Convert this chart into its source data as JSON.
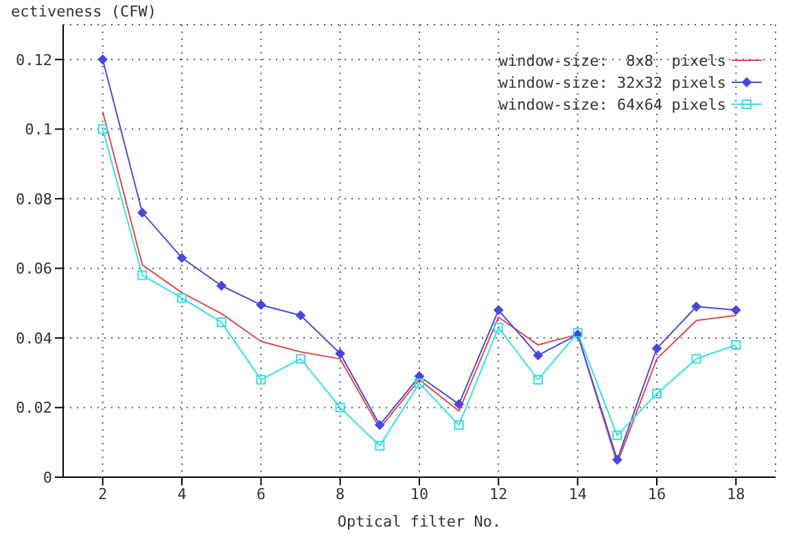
{
  "chart_data": {
    "type": "line",
    "xlabel": "Optical filter No.",
    "ylabel": "ectiveness (CFW)",
    "x": [
      2,
      3,
      4,
      5,
      6,
      7,
      8,
      9,
      10,
      11,
      12,
      13,
      14,
      15,
      16,
      17,
      18
    ],
    "series": [
      {
        "name": "window-size:  8x8  pixels",
        "color": "#e04848",
        "marker": "none",
        "values": [
          0.105,
          0.061,
          0.053,
          0.047,
          0.039,
          0.036,
          0.034,
          0.014,
          0.028,
          0.019,
          0.046,
          0.038,
          0.041,
          0.004,
          0.034,
          0.045,
          0.0465
        ]
      },
      {
        "name": "window-size: 32x32 pixels",
        "color": "#4848e0",
        "marker": "diamond",
        "values": [
          0.12,
          0.076,
          0.063,
          0.055,
          0.0495,
          0.0465,
          0.0355,
          0.015,
          0.029,
          0.021,
          0.048,
          0.035,
          0.041,
          0.005,
          0.037,
          0.049,
          0.048
        ]
      },
      {
        "name": "window-size: 64x64 pixels",
        "color": "#30e0e0",
        "marker": "square",
        "values": [
          0.1,
          0.058,
          0.0515,
          0.0445,
          0.028,
          0.034,
          0.02,
          0.009,
          0.027,
          0.015,
          0.043,
          0.028,
          0.0415,
          0.012,
          0.024,
          0.034,
          0.038
        ]
      }
    ],
    "xlim": [
      1,
      19
    ],
    "xticks": [
      2,
      4,
      6,
      8,
      10,
      12,
      14,
      16,
      18
    ],
    "ylim": [
      0,
      0.13
    ],
    "yticks": [
      0,
      0.02,
      0.04,
      0.06,
      0.08,
      0.1,
      0.12
    ],
    "grid": true,
    "legend": "top right",
    "line_style": "solid"
  }
}
